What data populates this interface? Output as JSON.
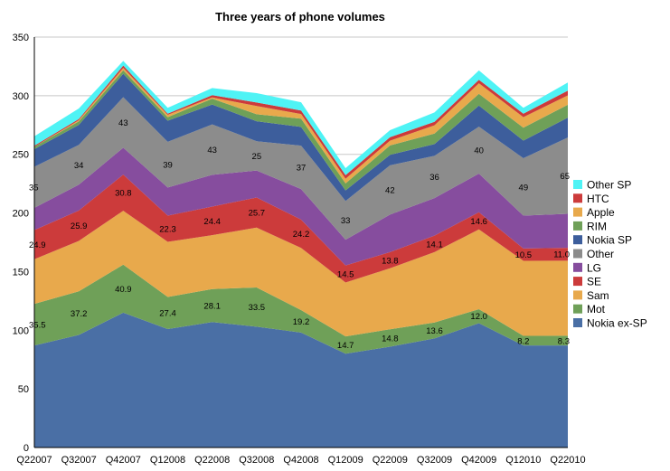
{
  "chart_data": {
    "type": "area",
    "stacked": true,
    "title": "Three years of phone volumes",
    "xlabel": "",
    "ylabel": "",
    "ylim": [
      0,
      350
    ],
    "yticks": [
      0,
      50,
      100,
      150,
      200,
      250,
      300,
      350
    ],
    "grid": true,
    "legend_position": "right",
    "categories": [
      "Q22007",
      "Q32007",
      "Q42007",
      "Q12008",
      "Q22008",
      "Q32008",
      "Q42008",
      "Q12009",
      "Q22009",
      "Q32009",
      "Q42009",
      "Q12010",
      "Q22010"
    ],
    "series": [
      {
        "name": "Nokia ex-SP",
        "color": "#4a6fa5",
        "values": [
          87,
          96,
          115,
          101,
          107,
          103,
          98,
          80,
          86,
          93,
          106,
          87,
          87
        ]
      },
      {
        "name": "Mot",
        "color": "#6fa058",
        "values": [
          35.5,
          37.2,
          40.9,
          27.4,
          28.1,
          33.5,
          19.2,
          14.7,
          14.8,
          13.6,
          12.0,
          8.2,
          8.3
        ]
      },
      {
        "name": "Sam",
        "color": "#e8a94c",
        "values": [
          38,
          43,
          46,
          47,
          46,
          51,
          53,
          46,
          52,
          60,
          68,
          64,
          64
        ]
      },
      {
        "name": "SE",
        "color": "#cc3b3b",
        "values": [
          24.9,
          25.9,
          30.8,
          22.3,
          24.4,
          25.7,
          24.2,
          14.5,
          13.8,
          14.1,
          14.6,
          10.5,
          11.0
        ]
      },
      {
        "name": "LG",
        "color": "#864d9e",
        "values": [
          19,
          22,
          23,
          24,
          27,
          23,
          26,
          22,
          32,
          32,
          33,
          28,
          29
        ]
      },
      {
        "name": "Other",
        "color": "#8c8c8c",
        "values": [
          35,
          34,
          43,
          39,
          43,
          25,
          37,
          33,
          42,
          36,
          40,
          49,
          65
        ]
      },
      {
        "name": "Nokia SP",
        "color": "#3d5e9c",
        "values": [
          15,
          17,
          20,
          18,
          17,
          17,
          16,
          9,
          9,
          10,
          18,
          15,
          17
        ]
      },
      {
        "name": "RIM",
        "color": "#6fa058",
        "values": [
          2,
          3,
          3,
          3,
          5,
          6,
          7,
          6,
          8,
          9,
          10,
          11,
          11
        ]
      },
      {
        "name": "Apple",
        "color": "#e8a94c",
        "values": [
          0,
          1,
          2,
          2,
          1,
          7,
          4,
          4,
          4,
          7,
          9,
          9,
          8
        ]
      },
      {
        "name": "HTC",
        "color": "#cc3b3b",
        "values": [
          1,
          1,
          2,
          1,
          2,
          3,
          3,
          3,
          3,
          3,
          3,
          3,
          4
        ]
      },
      {
        "name": "Other SP",
        "color": "#4ff3f5",
        "values": [
          8,
          9,
          4,
          5,
          6,
          8,
          7,
          6,
          6,
          8,
          8,
          5,
          7
        ]
      }
    ],
    "data_labels": [
      {
        "series": "Mot",
        "values": [
          "35.5",
          "37.2",
          "40.9",
          "27.4",
          "28.1",
          "33.5",
          "19.2",
          "14.7",
          "14.8",
          "13.6",
          "12.0",
          "8.2",
          "8.3"
        ]
      },
      {
        "series": "SE",
        "values": [
          "24.9",
          "25.9",
          "30.8",
          "22.3",
          "24.4",
          "25.7",
          "24.2",
          "14.5",
          "13.8",
          "14.1",
          "14.6",
          "10.5",
          "11.0"
        ]
      },
      {
        "series": "Other",
        "values": [
          "35",
          "34",
          "43",
          "39",
          "43",
          "25",
          "37",
          "33",
          "42",
          "36",
          "40",
          "49",
          "65"
        ]
      }
    ]
  }
}
